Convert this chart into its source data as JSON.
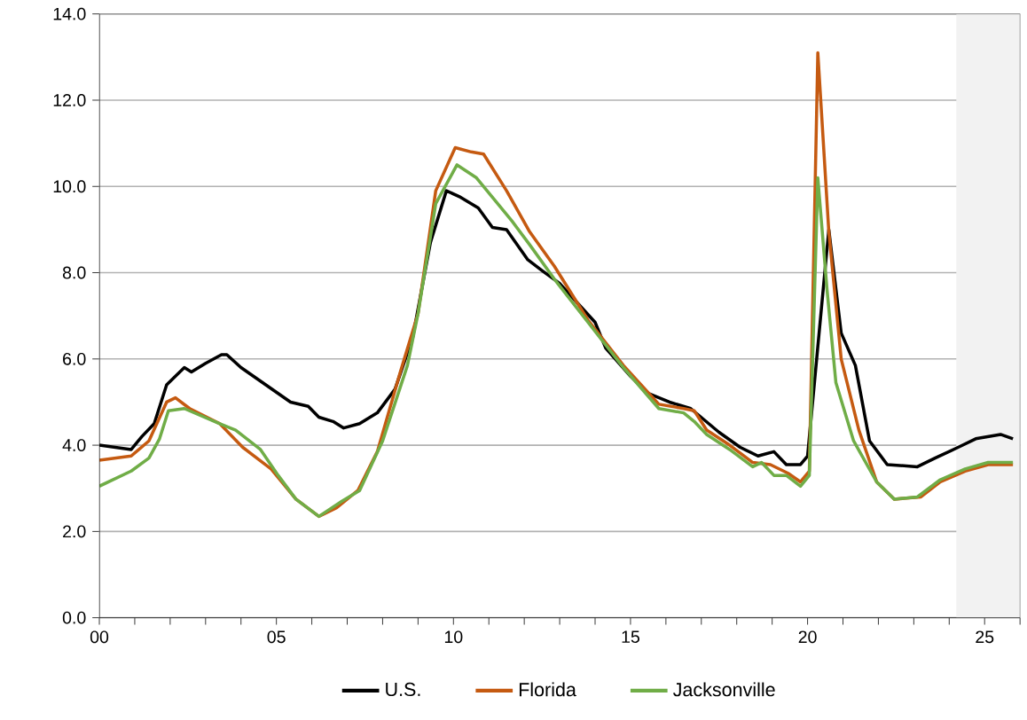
{
  "chart_data": {
    "type": "line",
    "xlim": [
      2000,
      2026
    ],
    "ylim": [
      0,
      14
    ],
    "xticks": [
      {
        "value": 2000,
        "label": "00"
      },
      {
        "value": 2001,
        "label": null
      },
      {
        "value": 2002,
        "label": null
      },
      {
        "value": 2003,
        "label": null
      },
      {
        "value": 2004,
        "label": null
      },
      {
        "value": 2005,
        "label": "05"
      },
      {
        "value": 2006,
        "label": null
      },
      {
        "value": 2007,
        "label": null
      },
      {
        "value": 2008,
        "label": null
      },
      {
        "value": 2009,
        "label": null
      },
      {
        "value": 2010,
        "label": "10"
      },
      {
        "value": 2011,
        "label": null
      },
      {
        "value": 2012,
        "label": null
      },
      {
        "value": 2013,
        "label": null
      },
      {
        "value": 2014,
        "label": null
      },
      {
        "value": 2015,
        "label": "15"
      },
      {
        "value": 2016,
        "label": null
      },
      {
        "value": 2017,
        "label": null
      },
      {
        "value": 2018,
        "label": null
      },
      {
        "value": 2019,
        "label": null
      },
      {
        "value": 2020,
        "label": "20"
      },
      {
        "value": 2021,
        "label": null
      },
      {
        "value": 2022,
        "label": null
      },
      {
        "value": 2023,
        "label": null
      },
      {
        "value": 2024,
        "label": null
      },
      {
        "value": 2025,
        "label": "25"
      },
      {
        "value": 2026,
        "label": null
      }
    ],
    "yticks": [
      {
        "value": 0,
        "label": "0.0"
      },
      {
        "value": 2,
        "label": "2.0"
      },
      {
        "value": 4,
        "label": "4.0"
      },
      {
        "value": 6,
        "label": "6.0"
      },
      {
        "value": 8,
        "label": "8.0"
      },
      {
        "value": 10,
        "label": "10.0"
      },
      {
        "value": 12,
        "label": "12.0"
      },
      {
        "value": 14,
        "label": "14.0"
      }
    ],
    "grid": "y",
    "legend": "bottom",
    "marker": "none",
    "line_style": "solid",
    "bands": [
      {
        "axis": "x",
        "from": 2024.2,
        "to": 2026,
        "color": "#f2f2f2"
      }
    ],
    "series": [
      {
        "name": "U.S.",
        "color": "#000000",
        "x": [
          2000.0,
          2000.9,
          2001.2,
          2001.55,
          2001.9,
          2002.4,
          2002.6,
          2003.0,
          2003.45,
          2003.6,
          2004.0,
          2004.7,
          2005.4,
          2005.9,
          2006.2,
          2006.6,
          2006.9,
          2007.35,
          2007.85,
          2008.35,
          2008.85,
          2009.35,
          2009.8,
          2010.2,
          2010.7,
          2011.1,
          2011.5,
          2012.1,
          2012.5,
          2013.0,
          2014.0,
          2014.3,
          2015.0,
          2015.5,
          2016.1,
          2016.7,
          2017.5,
          2018.1,
          2018.6,
          2019.05,
          2019.4,
          2019.8,
          2020.0,
          2020.29,
          2020.6,
          2020.95,
          2021.35,
          2021.75,
          2022.25,
          2023.1,
          2023.6,
          2024.25,
          2024.75,
          2025.45,
          2025.8
        ],
        "values": [
          4.0,
          3.9,
          4.2,
          4.5,
          5.4,
          5.8,
          5.7,
          5.9,
          6.1,
          6.1,
          5.8,
          5.4,
          5.0,
          4.9,
          4.65,
          4.55,
          4.4,
          4.5,
          4.75,
          5.3,
          6.5,
          8.7,
          9.9,
          9.75,
          9.5,
          9.05,
          9.0,
          8.3,
          8.05,
          7.75,
          6.85,
          6.25,
          5.6,
          5.2,
          5.0,
          4.85,
          4.3,
          3.95,
          3.75,
          3.85,
          3.55,
          3.55,
          3.75,
          null,
          9.0,
          6.6,
          5.85,
          4.1,
          3.55,
          3.5,
          3.7,
          3.95,
          4.15,
          4.25,
          4.15
        ]
      },
      {
        "name": "Florida",
        "color": "#c55a11",
        "x": [
          2000.0,
          2000.9,
          2001.4,
          2001.9,
          2002.15,
          2002.55,
          2003.4,
          2004.05,
          2004.85,
          2005.55,
          2006.2,
          2006.7,
          2007.3,
          2007.85,
          2008.5,
          2009.0,
          2009.5,
          2010.05,
          2010.5,
          2010.85,
          2011.5,
          2012.15,
          2012.85,
          2013.8,
          2014.8,
          2015.8,
          2016.5,
          2016.8,
          2017.15,
          2017.8,
          2018.45,
          2018.95,
          2019.45,
          2019.8,
          2020.05,
          2020.29,
          2020.6,
          2020.95,
          2021.45,
          2021.95,
          2022.45,
          2023.2,
          2023.75,
          2024.45,
          2025.1,
          2025.8
        ],
        "values": [
          3.65,
          3.75,
          4.1,
          5.0,
          5.1,
          4.85,
          4.5,
          3.95,
          3.45,
          2.75,
          2.35,
          2.55,
          2.95,
          3.85,
          5.7,
          7.05,
          9.9,
          10.9,
          10.8,
          10.75,
          9.9,
          8.95,
          8.15,
          6.9,
          5.85,
          4.95,
          4.85,
          4.8,
          4.35,
          4.0,
          3.6,
          3.55,
          3.35,
          3.15,
          3.4,
          13.1,
          8.95,
          6.0,
          4.35,
          3.15,
          2.75,
          2.8,
          3.15,
          3.4,
          3.55,
          3.55
        ]
      },
      {
        "name": "Jacksonville",
        "color": "#70ad47",
        "x": [
          2000.0,
          2000.9,
          2001.4,
          2001.7,
          2001.95,
          2002.4,
          2003.4,
          2003.85,
          2004.55,
          2005.05,
          2005.55,
          2006.2,
          2006.85,
          2007.35,
          2008.0,
          2008.7,
          2009.0,
          2009.5,
          2010.1,
          2010.65,
          2011.15,
          2011.65,
          2012.15,
          2012.85,
          2013.8,
          2014.8,
          2015.8,
          2016.5,
          2016.8,
          2017.15,
          2017.8,
          2018.45,
          2018.7,
          2019.05,
          2019.4,
          2019.8,
          2020.05,
          2020.29,
          2020.55,
          2020.8,
          2021.3,
          2021.95,
          2022.45,
          2023.1,
          2023.75,
          2024.45,
          2025.1,
          2025.8
        ],
        "values": [
          3.05,
          3.4,
          3.7,
          4.15,
          4.8,
          4.85,
          4.5,
          4.35,
          3.9,
          3.3,
          2.75,
          2.35,
          2.7,
          2.95,
          4.1,
          5.85,
          7.05,
          9.6,
          10.5,
          10.2,
          9.7,
          9.2,
          8.65,
          7.85,
          6.85,
          5.8,
          4.85,
          4.75,
          4.55,
          4.25,
          3.9,
          3.5,
          3.6,
          3.3,
          3.3,
          3.05,
          3.3,
          10.2,
          7.6,
          5.45,
          4.1,
          3.15,
          2.75,
          2.8,
          3.2,
          3.45,
          3.6,
          3.6
        ]
      }
    ]
  }
}
